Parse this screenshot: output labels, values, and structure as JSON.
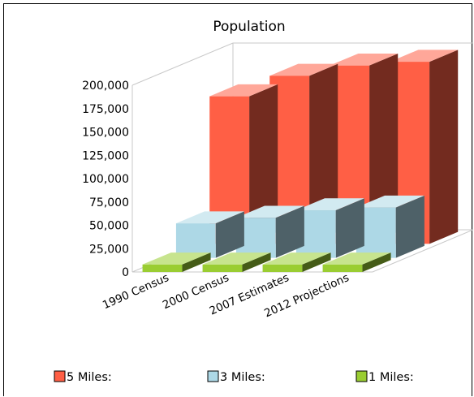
{
  "chart_data": {
    "type": "bar",
    "title": "Population",
    "categories": [
      "1990 Census",
      "2000 Census",
      "2007 Estimates",
      "2012 Projections"
    ],
    "y_ticks": [
      "0",
      "25,000",
      "50,000",
      "75,000",
      "100,000",
      "125,000",
      "150,000",
      "175,000",
      "200,000"
    ],
    "ylim": [
      0,
      200000
    ],
    "grid": false,
    "legend_position": "bottom",
    "series": [
      {
        "name": "5 Miles:",
        "values": [
          158000,
          180000,
          191000,
          195000
        ],
        "color": "#ff5f45"
      },
      {
        "name": "3 Miles:",
        "values": [
          37000,
          43000,
          51000,
          54000
        ],
        "color": "#add8e6"
      },
      {
        "name": "1 Miles:",
        "values": [
          8000,
          8000,
          8000,
          8000
        ],
        "color": "#9acd32"
      }
    ]
  }
}
